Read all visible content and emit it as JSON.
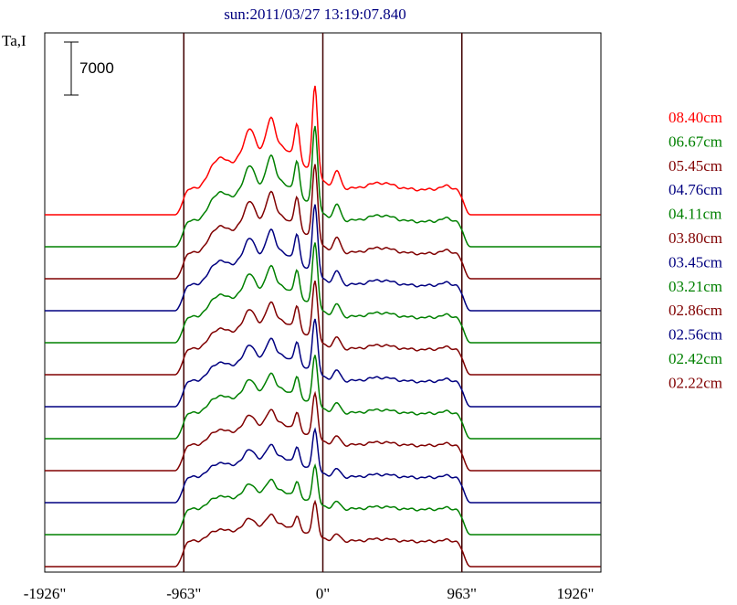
{
  "chart_data": {
    "type": "line",
    "title": "sun:2011/03/27 13:19:07.840",
    "ylabel": "Ta,I",
    "scale_bar_label": "7000",
    "scale_bar_value": 7000,
    "xlim": [
      -1926,
      1926
    ],
    "x_ticks": [
      -1926,
      -963,
      0,
      963,
      1926
    ],
    "x_tick_labels": [
      "-1926\"",
      "-963\"",
      "0\"",
      "963\"",
      "1926\""
    ],
    "vertical_lines_at": [
      -963,
      0,
      963
    ],
    "grid": false,
    "legend_position": "right",
    "series": [
      {
        "name": "08.40cm",
        "color": "#ff0000",
        "amp": 1.0
      },
      {
        "name": "06.67cm",
        "color": "#008000",
        "amp": 0.92
      },
      {
        "name": "05.45cm",
        "color": "#800000",
        "amp": 0.86
      },
      {
        "name": "04.76cm",
        "color": "#000080",
        "amp": 0.78
      },
      {
        "name": "04.11cm",
        "color": "#008000",
        "amp": 0.72
      },
      {
        "name": "03.80cm",
        "color": "#800000",
        "amp": 0.66
      },
      {
        "name": "03.45cm",
        "color": "#000080",
        "amp": 0.6
      },
      {
        "name": "03.21cm",
        "color": "#008000",
        "amp": 0.56
      },
      {
        "name": "02.86cm",
        "color": "#800000",
        "amp": 0.5
      },
      {
        "name": "02.56cm",
        "color": "#000080",
        "amp": 0.46
      },
      {
        "name": "02.42cm",
        "color": "#008000",
        "amp": 0.42
      },
      {
        "name": "02.22cm",
        "color": "#800000",
        "amp": 0.38
      }
    ]
  }
}
